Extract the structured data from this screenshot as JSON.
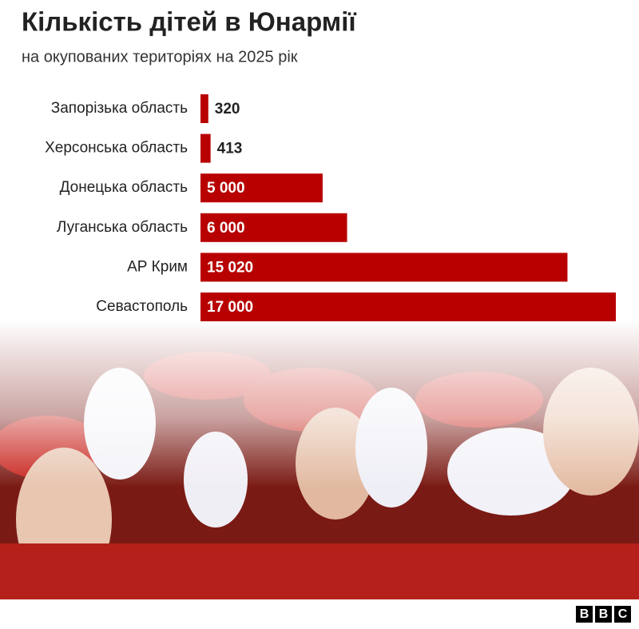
{
  "chart_data": {
    "type": "bar",
    "orientation": "horizontal",
    "title": "Кількість дітей в Юнармії",
    "subtitle": "на окупованих територіях на 2025 рік",
    "categories": [
      "Запорізька область",
      "Херсонська область",
      "Донецька область",
      "Луганська область",
      "АР Крим",
      "Севастополь"
    ],
    "values": [
      320,
      413,
      5000,
      6000,
      15020,
      17000
    ],
    "value_labels": [
      "320",
      "413",
      "5 000",
      "6 000",
      "15 020",
      "17 000"
    ],
    "color": "#b80000"
  },
  "footer": {
    "logo": [
      "B",
      "B",
      "C"
    ]
  }
}
